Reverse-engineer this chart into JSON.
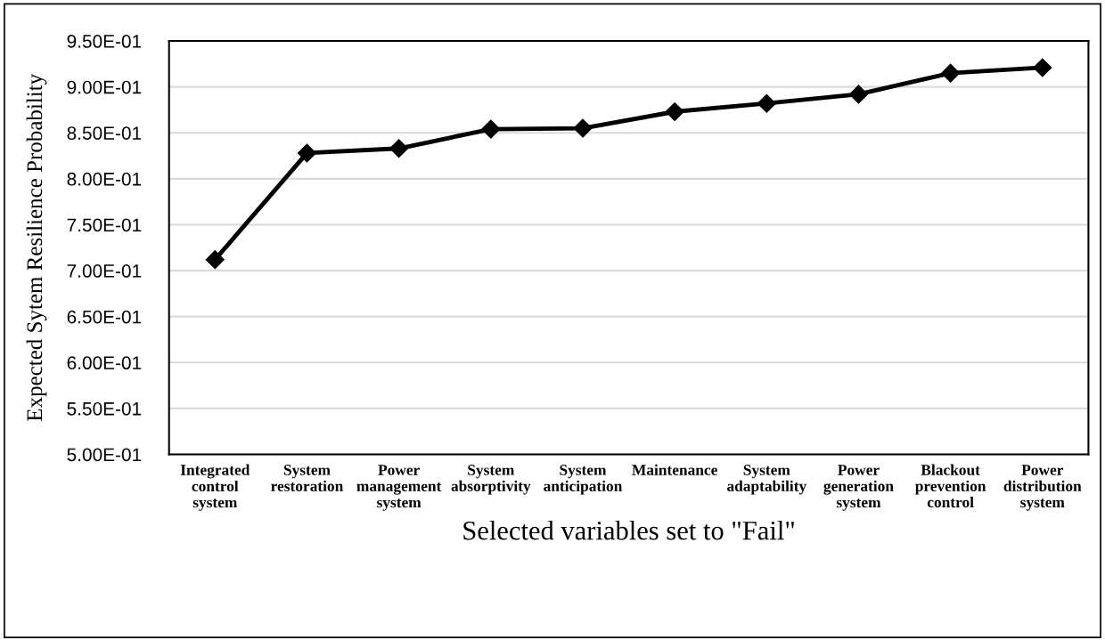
{
  "chart_data": {
    "type": "line",
    "xlabel": "Selected variables set to \"Fail\"",
    "ylabel": "Expected Sytem Resilience Probability",
    "categories": [
      "Integrated\ncontrol\nsystem",
      "System\nrestoration",
      "Power\nmanagement\nsystem",
      "System\nabsorptivity",
      "System\nanticipation",
      "Maintenance",
      "System\nadaptability",
      "Power\ngeneration\nsystem",
      "Blackout\nprevention\ncontrol",
      "Power\ndistribution\nsystem"
    ],
    "series": [
      {
        "color": "#000000",
        "values": [
          0.712,
          0.828,
          0.833,
          0.854,
          0.855,
          0.873,
          0.882,
          0.892,
          0.915,
          0.921
        ]
      }
    ],
    "ylim": [
      0.5,
      0.95
    ],
    "yticks": [
      {
        "value": 0.5,
        "label": "5.00E-01"
      },
      {
        "value": 0.55,
        "label": "5.50E-01"
      },
      {
        "value": 0.6,
        "label": "6.00E-01"
      },
      {
        "value": 0.65,
        "label": "6.50E-01"
      },
      {
        "value": 0.7,
        "label": "7.00E-01"
      },
      {
        "value": 0.75,
        "label": "7.50E-01"
      },
      {
        "value": 0.8,
        "label": "8.00E-01"
      },
      {
        "value": 0.85,
        "label": "8.50E-01"
      },
      {
        "value": 0.9,
        "label": "9.00E-01"
      },
      {
        "value": 0.95,
        "label": "9.50E-01"
      }
    ],
    "grid": "y",
    "marker": "diamond",
    "line_style": "solid"
  }
}
